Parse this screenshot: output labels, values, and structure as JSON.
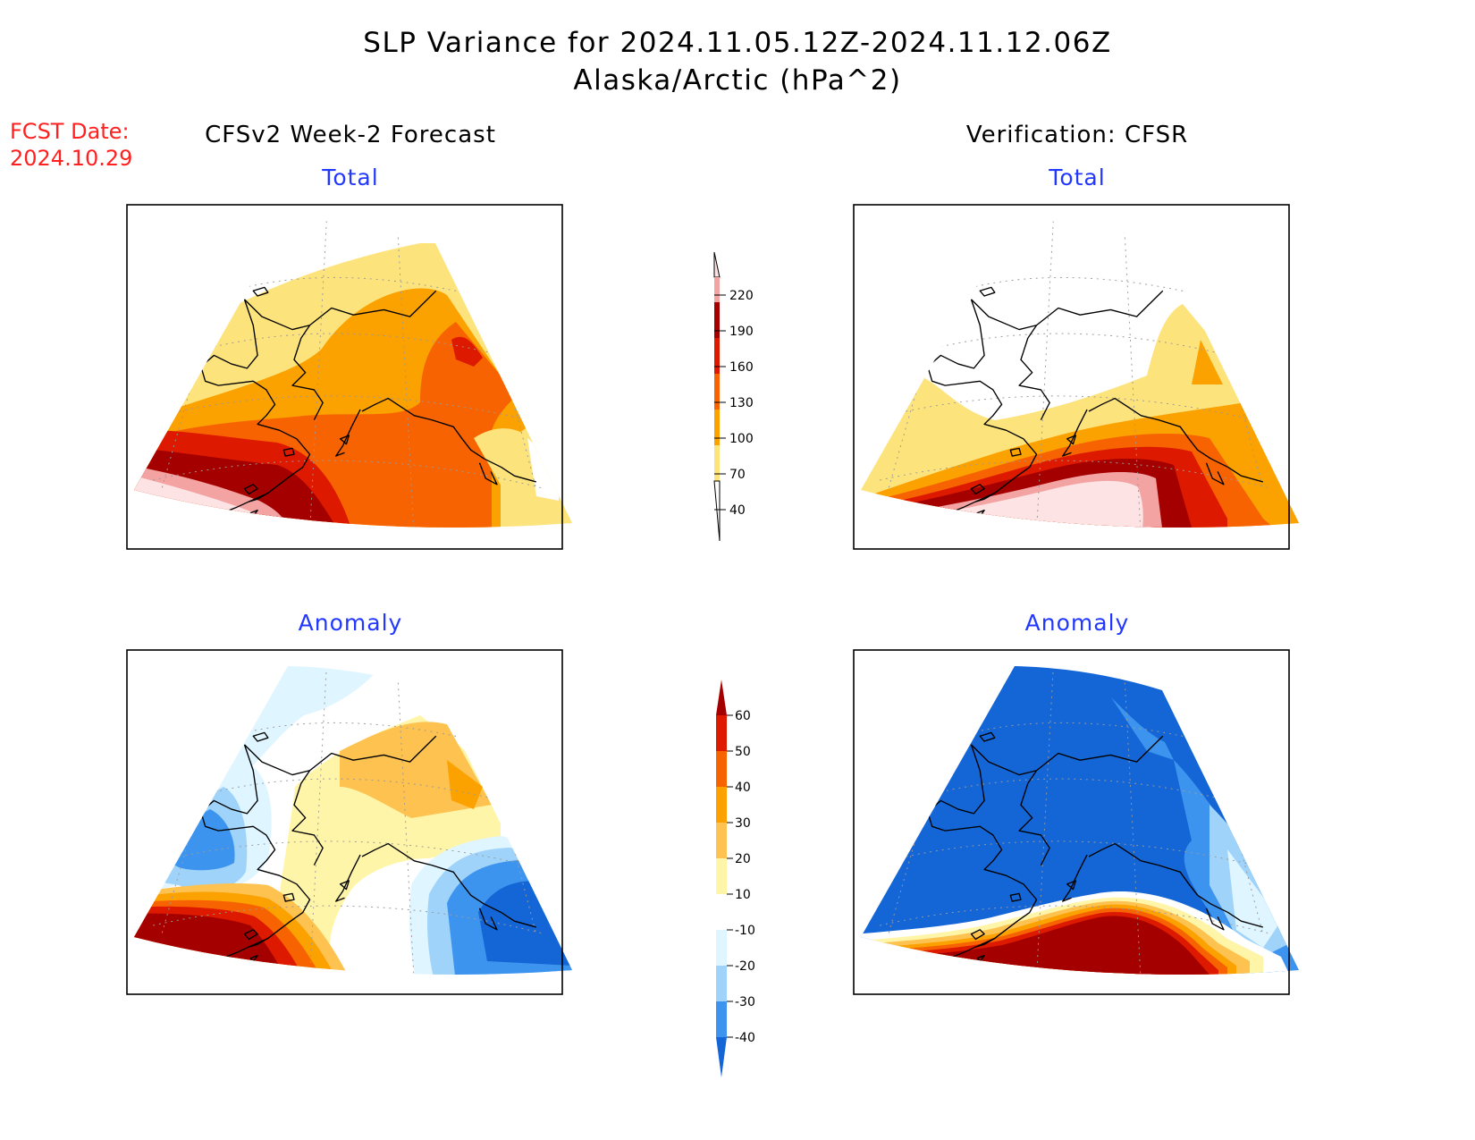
{
  "title_line1": "SLP Variance for 2024.11.05.12Z-2024.11.12.06Z",
  "title_line2": "Alaska/Arctic (hPa^2)",
  "fcst_label": "FCST Date:",
  "fcst_date": "2024.10.29",
  "left_column_title": "CFSv2 Week-2 Forecast",
  "right_column_title": "Verification: CFSR",
  "panels": {
    "forecast_total_title": "Total",
    "verification_total_title": "Total",
    "forecast_anomaly_title": "Anomaly",
    "verification_anomaly_title": "Anomaly"
  },
  "total_colorbar": {
    "levels": [
      "220",
      "190",
      "160",
      "130",
      "100",
      "70",
      "40"
    ],
    "colors": [
      "#fde3e3",
      "#f4a3a3",
      "#a50000",
      "#dd1a00",
      "#f76300",
      "#fba100",
      "#fde37c"
    ]
  },
  "anomaly_colorbar": {
    "levels": [
      "60",
      "50",
      "40",
      "30",
      "20",
      "10",
      "-10",
      "-20",
      "-30",
      "-40"
    ],
    "colors": [
      "#a50000",
      "#dd1a00",
      "#f76300",
      "#fba100",
      "#fdc24f",
      "#fff5a8",
      "#ffffff",
      "#dff5ff",
      "#9fd3fa",
      "#3d94ee",
      "#1466d6"
    ]
  }
}
